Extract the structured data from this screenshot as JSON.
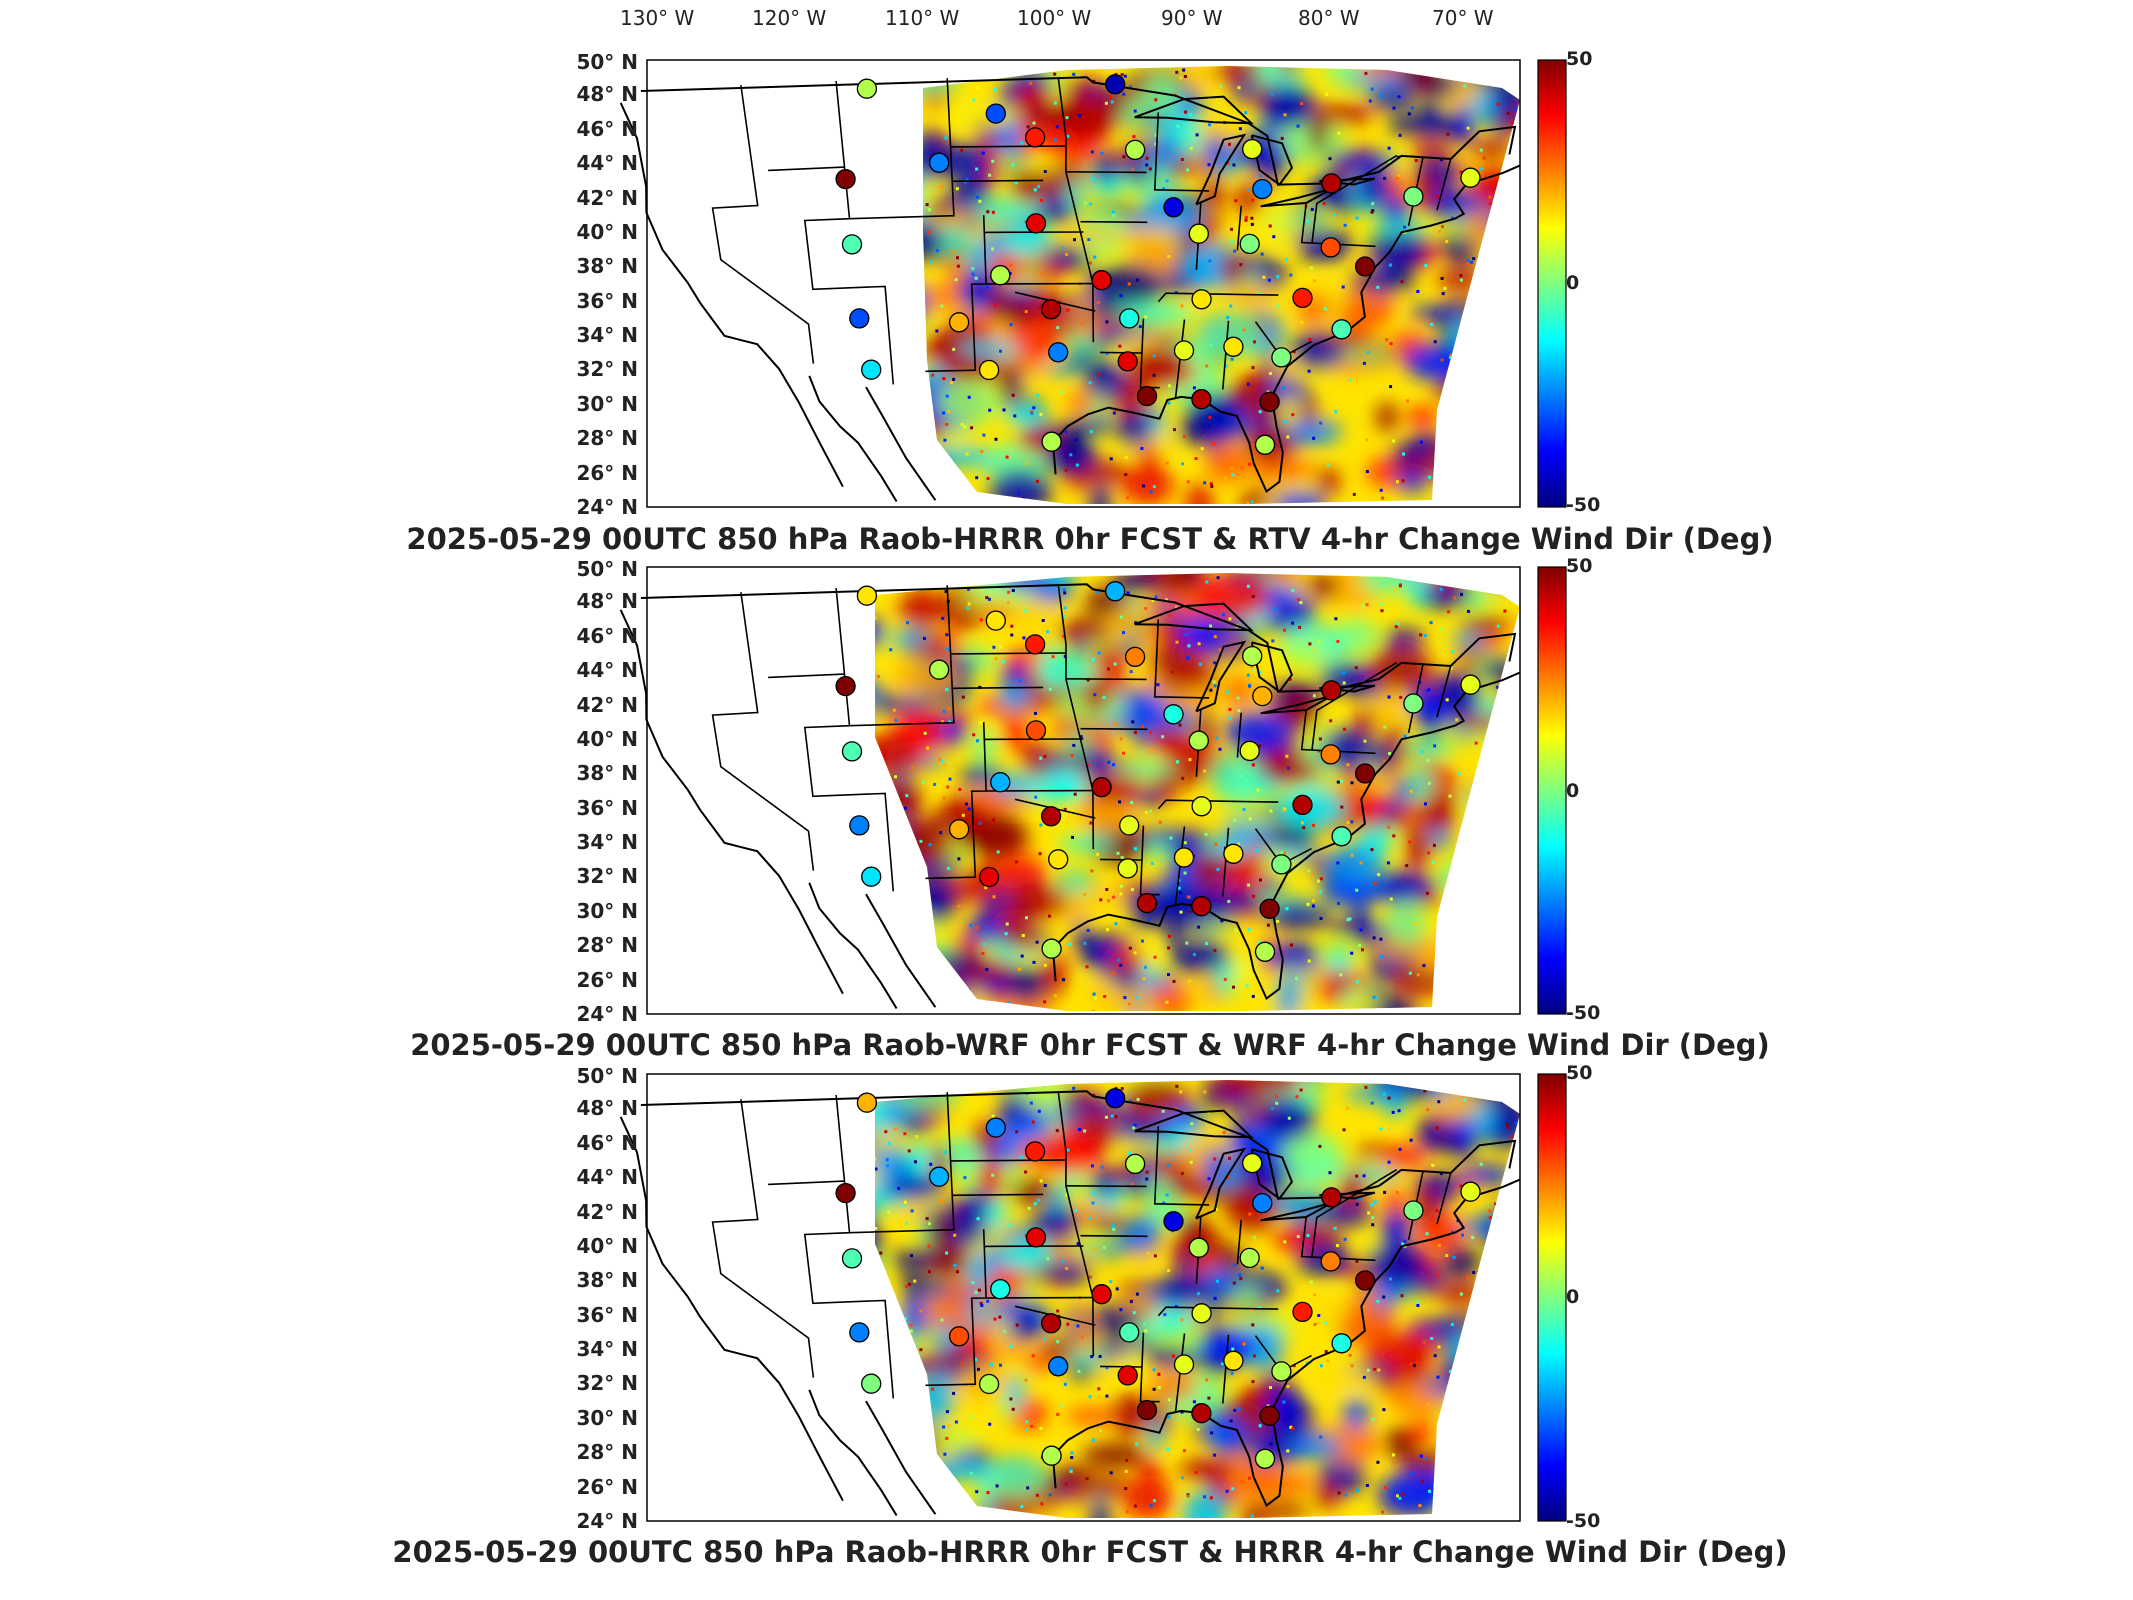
{
  "longitude_labels": [
    "130° W",
    "120° W",
    "110° W",
    "100° W",
    "90° W",
    "80° W",
    "70° W"
  ],
  "latitude_labels": [
    "50° N",
    "48° N",
    "46° N",
    "44° N",
    "42° N",
    "40° N",
    "38° N",
    "36° N",
    "34° N",
    "32° N",
    "30° N",
    "28° N",
    "26° N",
    "24° N"
  ],
  "colorbar": {
    "max_label": "50",
    "mid_label": "0",
    "min_label": "-50",
    "colors": [
      "#00007f",
      "#0000ff",
      "#007fff",
      "#00ffff",
      "#7fff7f",
      "#ffff00",
      "#ff7f00",
      "#ff0000",
      "#7f0000"
    ]
  },
  "panels": [
    {
      "title": "2025-05-29 00UTC 850 hPa Raob-HRRR 0hr FCST & RTV 4-hr Change Wind Dir (Deg)"
    },
    {
      "title": "2025-05-29 00UTC 850 hPa Raob-WRF 0hr FCST & WRF 4-hr Change Wind Dir (Deg)"
    },
    {
      "title": "2025-05-29 00UTC 850 hPa Raob-HRRR 0hr FCST & HRRR 4-hr Change Wind Dir (Deg)"
    }
  ],
  "chart_data": {
    "type": "heatmap",
    "value_range": [
      -50,
      50
    ],
    "lon_range": [
      -130,
      -65
    ],
    "lat_range": [
      24,
      50
    ],
    "station_markers": [
      {
        "lon": -109.1,
        "lat": 48.5,
        "panels": [
          5,
          15,
          20
        ]
      },
      {
        "lon": -101.0,
        "lat": 46.9,
        "panels": [
          -30,
          15,
          -25
        ]
      },
      {
        "lon": -98.5,
        "lat": 45.5,
        "panels": [
          35,
          35,
          35
        ]
      },
      {
        "lon": -93.4,
        "lat": 48.6,
        "panels": [
          -45,
          -20,
          -40
        ]
      },
      {
        "lon": -104.8,
        "lat": 44.1,
        "panels": [
          -25,
          5,
          -20
        ]
      },
      {
        "lon": -111.0,
        "lat": 43.3,
        "panels": [
          50,
          50,
          50
        ]
      },
      {
        "lon": -92.0,
        "lat": 44.8,
        "panels": [
          5,
          25,
          5
        ]
      },
      {
        "lon": -84.4,
        "lat": 45.0,
        "panels": [
          10,
          5,
          10
        ]
      },
      {
        "lon": -83.5,
        "lat": 42.7,
        "panels": [
          -25,
          20,
          -25
        ]
      },
      {
        "lon": -79.0,
        "lat": 43.2,
        "panels": [
          45,
          45,
          45
        ]
      },
      {
        "lon": -73.5,
        "lat": 42.7,
        "panels": [
          0,
          0,
          0
        ]
      },
      {
        "lon": -70.0,
        "lat": 44.0,
        "panels": [
          10,
          10,
          10
        ]
      },
      {
        "lon": -89.3,
        "lat": 41.5,
        "panels": [
          -40,
          -10,
          -40
        ]
      },
      {
        "lon": -87.5,
        "lat": 40.0,
        "panels": [
          10,
          5,
          5
        ]
      },
      {
        "lon": -98.5,
        "lat": 40.5,
        "panels": [
          40,
          30,
          40
        ]
      },
      {
        "lon": -101.0,
        "lat": 37.5,
        "panels": [
          5,
          -20,
          -10
        ]
      },
      {
        "lon": -111.0,
        "lat": 39.5,
        "panels": [
          -5,
          -5,
          -5
        ]
      },
      {
        "lon": -94.0,
        "lat": 37.2,
        "panels": [
          40,
          45,
          40
        ]
      },
      {
        "lon": -84.0,
        "lat": 39.5,
        "panels": [
          0,
          10,
          5
        ]
      },
      {
        "lon": -78.5,
        "lat": 39.5,
        "panels": [
          30,
          25,
          25
        ]
      },
      {
        "lon": -76.0,
        "lat": 38.5,
        "panels": [
          50,
          50,
          50
        ]
      },
      {
        "lon": -80.0,
        "lat": 36.5,
        "panels": [
          35,
          45,
          35
        ]
      },
      {
        "lon": -87.0,
        "lat": 36.2,
        "panels": [
          15,
          10,
          10
        ]
      },
      {
        "lon": -92.0,
        "lat": 35.0,
        "panels": [
          -10,
          10,
          -5
        ]
      },
      {
        "lon": -97.5,
        "lat": 35.5,
        "panels": [
          45,
          45,
          45
        ]
      },
      {
        "lon": -104.0,
        "lat": 34.8,
        "panels": [
          20,
          20,
          30
        ]
      },
      {
        "lon": -111.0,
        "lat": 35.2,
        "panels": [
          -30,
          -25,
          -25
        ]
      },
      {
        "lon": -110.5,
        "lat": 32.2,
        "panels": [
          -15,
          -15,
          0
        ]
      },
      {
        "lon": -102.0,
        "lat": 32.0,
        "panels": [
          15,
          40,
          5
        ]
      },
      {
        "lon": -97.0,
        "lat": 33.0,
        "panels": [
          -25,
          15,
          -25
        ]
      },
      {
        "lon": -92.0,
        "lat": 32.5,
        "panels": [
          40,
          10,
          40
        ]
      },
      {
        "lon": -88.0,
        "lat": 33.2,
        "panels": [
          10,
          15,
          10
        ]
      },
      {
        "lon": -84.5,
        "lat": 33.5,
        "panels": [
          15,
          15,
          15
        ]
      },
      {
        "lon": -81.0,
        "lat": 33.0,
        "panels": [
          0,
          0,
          5
        ]
      },
      {
        "lon": -77.0,
        "lat": 34.8,
        "panels": [
          -5,
          -5,
          -10
        ]
      },
      {
        "lon": -90.5,
        "lat": 30.5,
        "panels": [
          50,
          45,
          50
        ]
      },
      {
        "lon": -86.5,
        "lat": 30.4,
        "panels": [
          45,
          45,
          45
        ]
      },
      {
        "lon": -81.5,
        "lat": 30.4,
        "panels": [
          50,
          50,
          50
        ]
      },
      {
        "lon": -97.5,
        "lat": 27.8,
        "panels": [
          5,
          5,
          5
        ]
      },
      {
        "lon": -81.5,
        "lat": 27.9,
        "panels": [
          5,
          5,
          5
        ]
      }
    ]
  }
}
